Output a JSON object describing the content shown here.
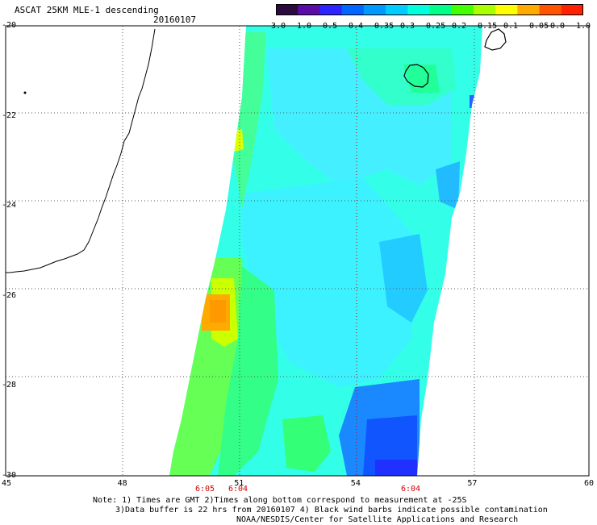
{
  "header": {
    "title": "ASCAT 25KM MLE-1 descending",
    "date": "20160107"
  },
  "colorbar": {
    "labels": [
      "-3.0",
      "-1.0",
      "-0.5",
      "-0.4",
      "-0.35",
      "-0.3",
      "-0.25",
      "-0.2",
      "-0.15",
      "-0.1",
      "-0.05",
      "0.0",
      "1.0"
    ],
    "colors": [
      "#2b0a3d",
      "#5a0ca8",
      "#2c25ff",
      "#0066ff",
      "#0099ff",
      "#00ccff",
      "#00ffdd",
      "#00ff88",
      "#44ff00",
      "#aaff00",
      "#ffff00",
      "#ffaa00",
      "#ff5500",
      "#ff2200"
    ]
  },
  "axes": {
    "lat_labels": [
      "-20",
      "-22",
      "-24",
      "-26",
      "-28",
      "-30"
    ],
    "lon_labels": [
      "45",
      "48",
      "51",
      "54",
      "57",
      "60"
    ],
    "lat_range": [
      -30,
      -20
    ],
    "lon_range": [
      45,
      60
    ]
  },
  "times": {
    "t1": "6:05",
    "t2": "6:04",
    "t3": "6:04"
  },
  "notes": {
    "line1": "Note: 1) Times are GMT 2)Times along bottom correspond to measurement at -25S",
    "line2": "3)Data buffer is 22 hrs from 20160107 4) Black wind barbs indicate possible contamination",
    "line3": "NOAA/NESDIS/Center for Satellite Applications and Research"
  }
}
